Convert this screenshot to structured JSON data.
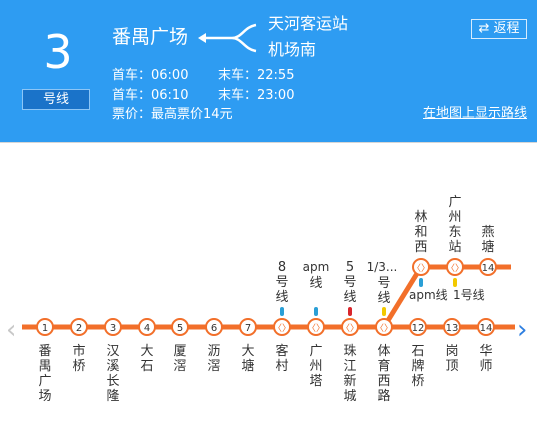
{
  "line": {
    "number": "3",
    "tag": "号线"
  },
  "route": {
    "from": "番禺广场",
    "to_1": "天河客运站",
    "to_2": "机场南"
  },
  "schedule": [
    {
      "first": "首车：06:00",
      "last": "末车：22:55"
    },
    {
      "first": "首车：06:10",
      "last": "末车：23:00"
    }
  ],
  "fare": "票价：最高票价14元",
  "return_btn": {
    "icon": "⇄",
    "label": "返程"
  },
  "map_link": "在地图上显示路线",
  "colors": {
    "header": "#2e9cf2",
    "line": "#f26f2a"
  },
  "stations_main": [
    {
      "id": "1",
      "name": "番禺广场"
    },
    {
      "id": "2",
      "name": "市桥"
    },
    {
      "id": "3",
      "name": "汉溪长隆"
    },
    {
      "id": "4",
      "name": "大石"
    },
    {
      "id": "5",
      "name": "厦滘"
    },
    {
      "id": "6",
      "name": "沥滘"
    },
    {
      "id": "7",
      "name": "大塘"
    },
    {
      "id": "",
      "name": "客村",
      "transfer": "8号线"
    },
    {
      "id": "",
      "name": "广州塔",
      "transfer": "apm线"
    },
    {
      "id": "",
      "name": "珠江新城",
      "transfer": "5号线"
    },
    {
      "id": "",
      "name": "体育西路",
      "transfer": "1/3号线"
    },
    {
      "id": "12",
      "name": "石牌桥"
    },
    {
      "id": "13",
      "name": "岗顶"
    },
    {
      "id": "14",
      "name": "华师"
    }
  ],
  "stations_branch": [
    {
      "id": "",
      "name": "林和西",
      "transfer": "apm线"
    },
    {
      "id": "",
      "name": "广州东站",
      "transfer": "1号线"
    },
    {
      "id": "14",
      "name": "燕塘"
    }
  ],
  "branch_top_label": "1/3...",
  "nav": {
    "prev": "‹",
    "next": "›"
  }
}
